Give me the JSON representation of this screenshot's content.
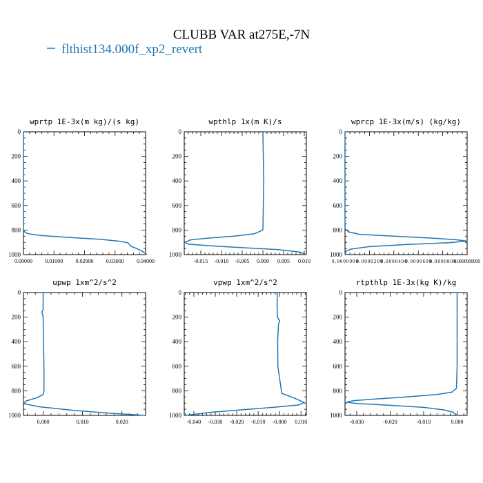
{
  "figure": {
    "title": "CLUBB VAR at275E,-7N",
    "legend_label": "flthist134.000f_xp2_revert",
    "series_color": "#1f77b4"
  },
  "chart_data": [
    {
      "type": "line",
      "title": "wprtp  1E-3x(m kg)/(s kg)",
      "xlabel": "",
      "ylabel": "",
      "xlim": [
        0,
        0.04
      ],
      "ylim": [
        1000,
        0
      ],
      "xticks": [
        0,
        0.01,
        0.02,
        0.03,
        0.04
      ],
      "xtick_labels": [
        "0.00000",
        "0.01000",
        "0.02000",
        "0.03000",
        "0.04000"
      ],
      "yticks": [
        0,
        200,
        400,
        600,
        800,
        1000
      ],
      "ytick_labels": [
        "0",
        "200",
        "400",
        "600",
        "800",
        "1000"
      ],
      "series": [
        {
          "x": [
            0,
            0,
            0.0004,
            0.0015,
            0.006,
            0.015,
            0.025,
            0.031,
            0.034,
            0.0345,
            0.035,
            0.037,
            0.039,
            0.0405
          ],
          "y": [
            0,
            800,
            815,
            830,
            845,
            860,
            875,
            890,
            902,
            910,
            930,
            950,
            975,
            1000
          ]
        }
      ]
    },
    {
      "type": "line",
      "title": "wpthlp  1x(m K)/s",
      "xlabel": "",
      "ylabel": "",
      "xlim": [
        -0.019,
        0.0105
      ],
      "ylim": [
        1000,
        0
      ],
      "xticks": [
        -0.015,
        -0.01,
        -0.005,
        0,
        0.005,
        0.01
      ],
      "xtick_labels": [
        "-0.015",
        "-0.010",
        "-0.005",
        "0.000",
        "0.005",
        "0.010"
      ],
      "yticks": [
        0,
        200,
        400,
        600,
        800,
        1000
      ],
      "ytick_labels": [
        "0",
        "200",
        "400",
        "600",
        "800",
        "1000"
      ],
      "series": [
        {
          "x": [
            0,
            0.0001,
            0.0002,
            0.0001,
            0,
            -0.002,
            -0.007,
            -0.013,
            -0.0175,
            -0.0188,
            -0.018,
            -0.012,
            -0.004,
            0.004,
            0.009,
            0.0105
          ],
          "y": [
            0,
            200,
            400,
            600,
            800,
            830,
            850,
            865,
            880,
            900,
            915,
            930,
            945,
            960,
            980,
            1000
          ]
        }
      ]
    },
    {
      "type": "line",
      "title": "wprcp  1E-3x(m/s) (kg/kg)",
      "xlabel": "",
      "ylabel": "",
      "xlim": [
        0,
        0.0001
      ],
      "ylim": [
        1000,
        0
      ],
      "xticks": [
        0,
        2e-05,
        4e-05,
        6e-05,
        8e-05,
        0.0001
      ],
      "xtick_labels": [
        "0.0000000",
        "0.0000200",
        "0.0000400",
        "0.0000600",
        "0.0000800",
        "0.0000999999"
      ],
      "yticks": [
        0,
        200,
        400,
        600,
        800,
        1000
      ],
      "ytick_labels": [
        "0",
        "200",
        "400",
        "600",
        "800",
        "1000"
      ],
      "series": [
        {
          "x": [
            0,
            0,
            3e-06,
            1.2e-05,
            4e-05,
            7e-05,
            9e-05,
            0.0001,
            8.5e-05,
            5e-05,
            2e-05,
            5e-06,
            1e-06,
            0
          ],
          "y": [
            0,
            790,
            815,
            835,
            850,
            865,
            878,
            890,
            903,
            918,
            935,
            955,
            970,
            1000
          ]
        }
      ]
    },
    {
      "type": "line",
      "title": "upwp  1xm^2/s^2",
      "xlabel": "",
      "ylabel": "",
      "xlim": [
        -0.005,
        0.026
      ],
      "ylim": [
        1000,
        0
      ],
      "xticks": [
        0,
        0.01,
        0.02
      ],
      "xtick_labels": [
        "0.000",
        "0.010",
        "0.020"
      ],
      "yticks": [
        0,
        200,
        400,
        600,
        800,
        1000
      ],
      "ytick_labels": [
        "0",
        "200",
        "400",
        "600",
        "800",
        "1000"
      ],
      "series": [
        {
          "x": [
            0,
            0,
            -0.0002,
            -0.0003,
            0,
            0.0001,
            0.0002,
            0.0002,
            0,
            -0.0015,
            -0.0045,
            -0.0048,
            -0.001,
            0.008,
            0.018,
            0.026
          ],
          "y": [
            0,
            140,
            150,
            160,
            200,
            400,
            600,
            800,
            830,
            855,
            885,
            905,
            930,
            960,
            985,
            1000
          ]
        }
      ]
    },
    {
      "type": "line",
      "title": "vpwp  1xm^2/s^2",
      "xlabel": "",
      "ylabel": "",
      "xlim": [
        -0.0445,
        0.0125
      ],
      "ylim": [
        1000,
        0
      ],
      "xticks": [
        -0.04,
        -0.03,
        -0.02,
        -0.01,
        0
      ],
      "xtick_labels": [
        "-0.040",
        "-0.030",
        "-0.020",
        "-0.010",
        "-0.000"
      ],
      "extra_xticks": [
        0.01
      ],
      "extra_xtick_labels": [
        "0.010"
      ],
      "yticks": [
        0,
        200,
        400,
        600,
        800,
        1000
      ],
      "ytick_labels": [
        "0",
        "200",
        "400",
        "600",
        "800",
        "1000"
      ],
      "series": [
        {
          "x": [
            -0.001,
            -0.0012,
            -0.001,
            0,
            -0.0005,
            -0.0009,
            -0.0008,
            0.001,
            0.007,
            0.0115,
            0.009,
            -0.003,
            -0.018,
            -0.032,
            -0.044
          ],
          "y": [
            0,
            100,
            200,
            230,
            260,
            400,
            600,
            820,
            860,
            895,
            915,
            935,
            955,
            975,
            1000
          ]
        }
      ]
    },
    {
      "type": "line",
      "title": "rtpthlp  1E-3x(kg K)/kg",
      "xlabel": "",
      "ylabel": "",
      "xlim": [
        -0.0335,
        0.003
      ],
      "ylim": [
        1000,
        0
      ],
      "xticks": [
        -0.03,
        -0.02,
        -0.01,
        0
      ],
      "xtick_labels": [
        "-0.030",
        "-0.020",
        "-0.010",
        "0.000"
      ],
      "yticks": [
        0,
        200,
        400,
        600,
        800,
        1000
      ],
      "ytick_labels": [
        "0",
        "200",
        "400",
        "600",
        "800",
        "1000"
      ],
      "series": [
        {
          "x": [
            0,
            0,
            -0.0002,
            -0.0015,
            -0.006,
            -0.015,
            -0.025,
            -0.031,
            -0.033,
            -0.03,
            -0.02,
            -0.01,
            -0.004,
            -0.0012,
            0
          ],
          "y": [
            0,
            600,
            780,
            810,
            830,
            850,
            868,
            880,
            893,
            903,
            918,
            935,
            955,
            975,
            1000
          ]
        }
      ]
    }
  ]
}
